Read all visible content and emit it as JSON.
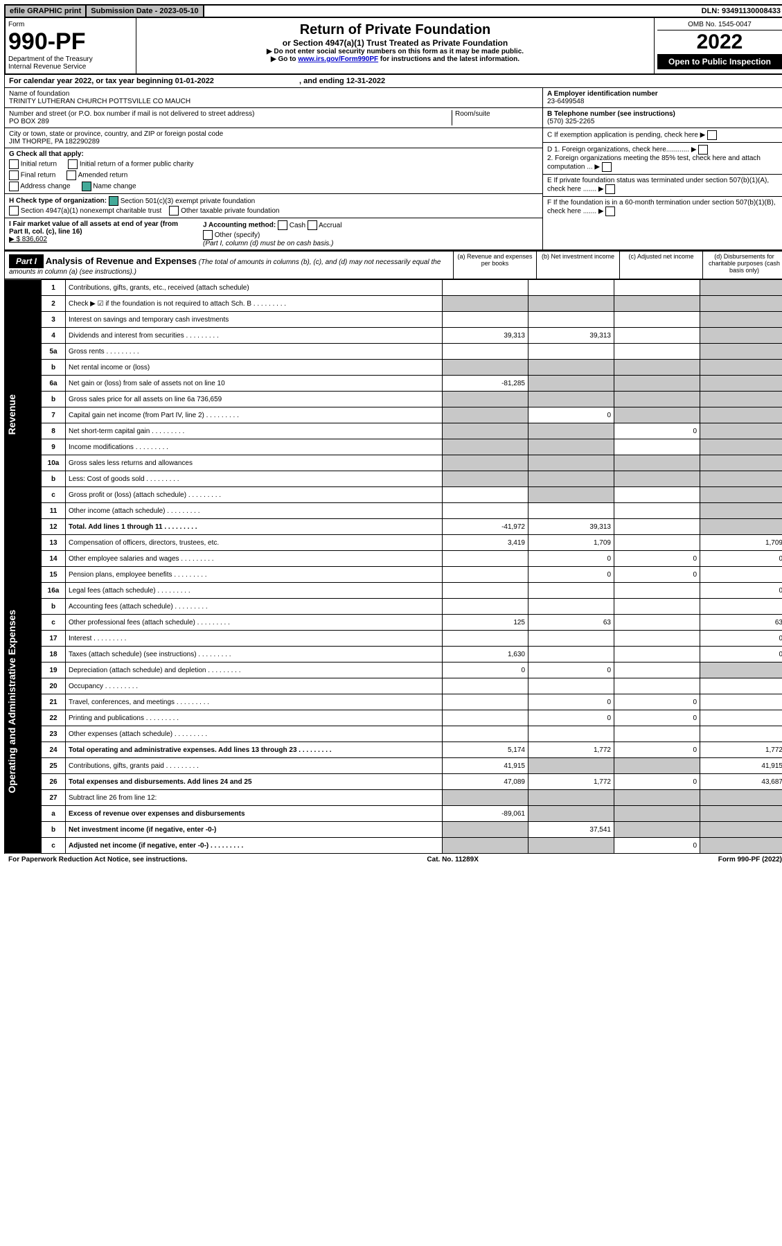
{
  "top": {
    "efile": "efile GRAPHIC print",
    "subdate_label": "Submission Date - ",
    "subdate": "2023-05-10",
    "dln": "DLN: 93491130008433"
  },
  "header": {
    "form_label": "Form",
    "form_number": "990-PF",
    "dept": "Department of the Treasury\nInternal Revenue Service",
    "title": "Return of Private Foundation",
    "subtitle": "or Section 4947(a)(1) Trust Treated as Private Foundation",
    "instr1": "▶ Do not enter social security numbers on this form as it may be made public.",
    "instr2_pre": "▶ Go to ",
    "instr2_link": "www.irs.gov/Form990PF",
    "instr2_post": " for instructions and the latest information.",
    "omb": "OMB No. 1545-0047",
    "year": "2022",
    "open_pub": "Open to Public Inspection"
  },
  "calendar": {
    "text_a": "For calendar year 2022, or tax year beginning ",
    "begin": "01-01-2022",
    "text_b": ", and ending ",
    "end": "12-31-2022"
  },
  "info_left": {
    "name_label": "Name of foundation",
    "name": "TRINITY LUTHERAN CHURCH POTTSVILLE CO MAUCH",
    "street_label": "Number and street (or P.O. box number if mail is not delivered to street address)",
    "street": "PO BOX 289",
    "room_label": "Room/suite",
    "city_label": "City or town, state or province, country, and ZIP or foreign postal code",
    "city": "JIM THORPE, PA  182290289",
    "g_label": "G Check all that apply:",
    "g_opts": [
      "Initial return",
      "Initial return of a former public charity",
      "Final return",
      "Amended return",
      "Address change",
      "Name change"
    ],
    "h_label": "H Check type of organization:",
    "h_opt1": "Section 501(c)(3) exempt private foundation",
    "h_opt2": "Section 4947(a)(1) nonexempt charitable trust",
    "h_opt3": "Other taxable private foundation",
    "i_label": "I Fair market value of all assets at end of year (from Part II, col. (c), line 16)",
    "i_value": "▶ $  836,602",
    "j_label": "J Accounting method:",
    "j_opts": [
      "Cash",
      "Accrual"
    ],
    "j_other": "Other (specify)",
    "j_note": "(Part I, column (d) must be on cash basis.)"
  },
  "info_right": {
    "a_label": "A Employer identification number",
    "a_val": "23-6499548",
    "b_label": "B Telephone number (see instructions)",
    "b_val": "(570) 325-2265",
    "c_label": "C If exemption application is pending, check here",
    "d1_label": "D 1. Foreign organizations, check here............",
    "d2_label": "2. Foreign organizations meeting the 85% test, check here and attach computation ...",
    "e_label": "E  If private foundation status was terminated under section 507(b)(1)(A), check here .......",
    "f_label": "F  If the foundation is in a 60-month termination under section 507(b)(1)(B), check here ......."
  },
  "part1": {
    "label": "Part I",
    "title": "Analysis of Revenue and Expenses",
    "note": "(The total of amounts in columns (b), (c), and (d) may not necessarily equal the amounts in column (a) (see instructions).)",
    "cols": {
      "a": "(a)  Revenue and expenses per books",
      "b": "(b)  Net investment income",
      "c": "(c)  Adjusted net income",
      "d": "(d)  Disbursements for charitable purposes (cash basis only)"
    }
  },
  "sections": {
    "revenue": "Revenue",
    "expenses": "Operating and Administrative Expenses"
  },
  "rows": [
    {
      "n": "1",
      "d": "",
      "a": "",
      "b": "",
      "c": "",
      "sh": [
        "d"
      ]
    },
    {
      "n": "2",
      "d": "",
      "dots": true,
      "a": "",
      "b": "",
      "c": "",
      "sh": [
        "a",
        "b",
        "c",
        "d"
      ]
    },
    {
      "n": "3",
      "d": "",
      "a": "",
      "b": "",
      "c": "",
      "sh": [
        "d"
      ]
    },
    {
      "n": "4",
      "d": "",
      "dots": true,
      "a": "39,313",
      "b": "39,313",
      "c": "",
      "sh": [
        "d"
      ]
    },
    {
      "n": "5a",
      "d": "",
      "dots": true,
      "a": "",
      "b": "",
      "c": "",
      "sh": [
        "d"
      ]
    },
    {
      "n": "b",
      "d": "",
      "a": "",
      "b": "",
      "c": "",
      "sh": [
        "a",
        "b",
        "c",
        "d"
      ]
    },
    {
      "n": "6a",
      "d": "",
      "a": "-81,285",
      "b": "",
      "c": "",
      "sh": [
        "b",
        "c",
        "d"
      ]
    },
    {
      "n": "b",
      "d": "",
      "a": "",
      "b": "",
      "c": "",
      "sh": [
        "a",
        "b",
        "c",
        "d"
      ]
    },
    {
      "n": "7",
      "d": "",
      "dots": true,
      "a": "",
      "b": "0",
      "c": "",
      "sh": [
        "a",
        "c",
        "d"
      ]
    },
    {
      "n": "8",
      "d": "",
      "dots": true,
      "a": "",
      "b": "",
      "c": "0",
      "sh": [
        "a",
        "b",
        "d"
      ]
    },
    {
      "n": "9",
      "d": "",
      "dots": true,
      "a": "",
      "b": "",
      "c": "",
      "sh": [
        "a",
        "b",
        "d"
      ]
    },
    {
      "n": "10a",
      "d": "",
      "a": "",
      "b": "",
      "c": "",
      "sh": [
        "a",
        "b",
        "c",
        "d"
      ]
    },
    {
      "n": "b",
      "d": "",
      "dots": true,
      "a": "",
      "b": "",
      "c": "",
      "sh": [
        "a",
        "b",
        "c",
        "d"
      ]
    },
    {
      "n": "c",
      "d": "",
      "dots": true,
      "a": "",
      "b": "",
      "c": "",
      "sh": [
        "b",
        "d"
      ]
    },
    {
      "n": "11",
      "d": "",
      "dots": true,
      "a": "",
      "b": "",
      "c": "",
      "sh": [
        "d"
      ]
    },
    {
      "n": "12",
      "d": "",
      "dots": true,
      "bold": true,
      "a": "-41,972",
      "b": "39,313",
      "c": "",
      "sh": [
        "d"
      ]
    },
    {
      "n": "13",
      "d": "1,709",
      "a": "3,419",
      "b": "1,709",
      "c": ""
    },
    {
      "n": "14",
      "d": "0",
      "dots": true,
      "a": "",
      "b": "0",
      "c": "0"
    },
    {
      "n": "15",
      "d": "",
      "dots": true,
      "a": "",
      "b": "0",
      "c": "0"
    },
    {
      "n": "16a",
      "d": "0",
      "dots": true,
      "a": "",
      "b": "",
      "c": ""
    },
    {
      "n": "b",
      "d": "",
      "dots": true,
      "a": "",
      "b": "",
      "c": ""
    },
    {
      "n": "c",
      "d": "63",
      "dots": true,
      "a": "125",
      "b": "63",
      "c": ""
    },
    {
      "n": "17",
      "d": "0",
      "dots": true,
      "a": "",
      "b": "",
      "c": ""
    },
    {
      "n": "18",
      "d": "0",
      "dots": true,
      "a": "1,630",
      "b": "",
      "c": ""
    },
    {
      "n": "19",
      "d": "",
      "dots": true,
      "a": "0",
      "b": "0",
      "c": "",
      "sh": [
        "d"
      ]
    },
    {
      "n": "20",
      "d": "",
      "dots": true,
      "a": "",
      "b": "",
      "c": ""
    },
    {
      "n": "21",
      "d": "",
      "dots": true,
      "a": "",
      "b": "0",
      "c": "0"
    },
    {
      "n": "22",
      "d": "",
      "dots": true,
      "a": "",
      "b": "0",
      "c": "0"
    },
    {
      "n": "23",
      "d": "",
      "dots": true,
      "a": "",
      "b": "",
      "c": ""
    },
    {
      "n": "24",
      "d": "1,772",
      "dots": true,
      "bold": true,
      "a": "5,174",
      "b": "1,772",
      "c": "0"
    },
    {
      "n": "25",
      "d": "41,915",
      "dots": true,
      "a": "41,915",
      "b": "",
      "c": "",
      "sh": [
        "b",
        "c"
      ]
    },
    {
      "n": "26",
      "d": "43,687",
      "bold": true,
      "a": "47,089",
      "b": "1,772",
      "c": "0"
    },
    {
      "n": "27",
      "d": "",
      "a": "",
      "b": "",
      "c": "",
      "sh": [
        "a",
        "b",
        "c",
        "d"
      ]
    },
    {
      "n": "a",
      "d": "",
      "bold": true,
      "a": "-89,061",
      "b": "",
      "c": "",
      "sh": [
        "b",
        "c",
        "d"
      ]
    },
    {
      "n": "b",
      "d": "",
      "bold": true,
      "a": "",
      "b": "37,541",
      "c": "",
      "sh": [
        "a",
        "c",
        "d"
      ]
    },
    {
      "n": "c",
      "d": "",
      "dots": true,
      "bold": true,
      "a": "",
      "b": "",
      "c": "0",
      "sh": [
        "a",
        "b",
        "d"
      ]
    }
  ],
  "footer": {
    "left": "For Paperwork Reduction Act Notice, see instructions.",
    "center": "Cat. No. 11289X",
    "right": "Form 990-PF (2022)"
  },
  "style": {
    "shade_color": "#c8c8c8",
    "link_color": "#0000cc",
    "checked_color": "#4a9c6a"
  }
}
